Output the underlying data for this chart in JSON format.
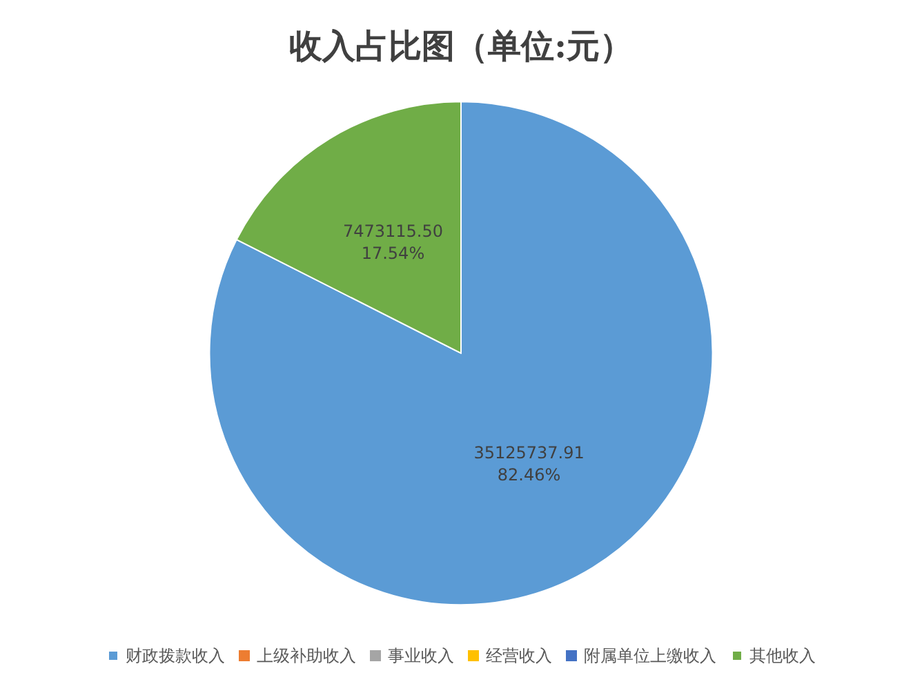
{
  "chart_data": {
    "type": "pie",
    "title": "收入占比图（单位:元）",
    "categories": [
      "财政拨款收入",
      "上级补助收入",
      "事业收入",
      "经营收入",
      "附属单位上缴收入",
      "其他收入"
    ],
    "values": [
      35125737.91,
      0,
      0,
      0,
      0,
      7473115.5
    ],
    "colors": [
      "#5b9bd5",
      "#ed7d31",
      "#a5a5a5",
      "#ffc000",
      "#4472c4",
      "#70ad47"
    ],
    "value_labels": [
      "35125737.91\n82.46%",
      null,
      null,
      null,
      null,
      "7473115.50\n17.54%"
    ],
    "legend": "bottom"
  }
}
